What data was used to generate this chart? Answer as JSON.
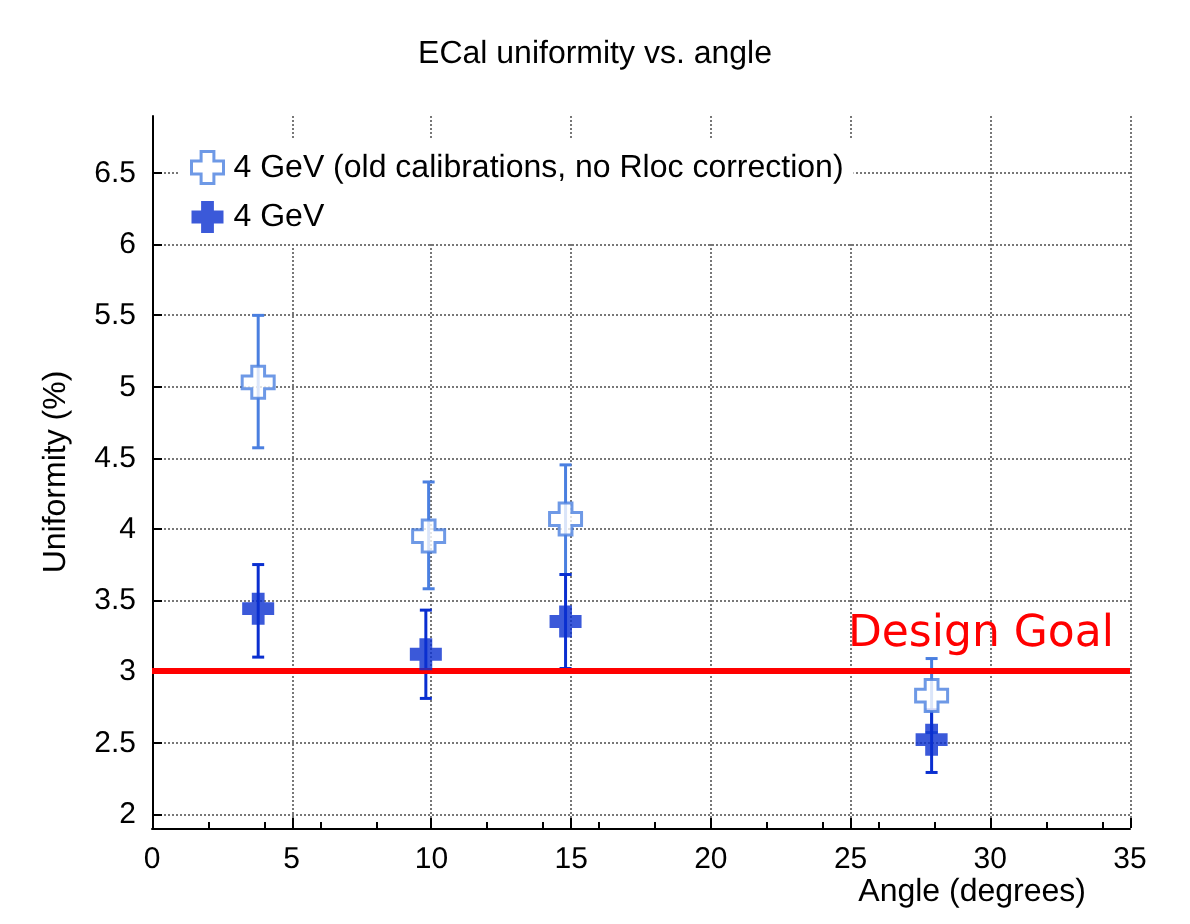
{
  "chart_data": {
    "type": "scatter",
    "title": "ECal uniformity vs. angle",
    "xlabel": "Angle (degrees)",
    "ylabel": "Uniformity (%)",
    "xlim": [
      0,
      35
    ],
    "xticks": [
      0,
      5,
      10,
      15,
      20,
      25,
      30,
      35
    ],
    "ylim": [
      1.9,
      6.9
    ],
    "yticks": [
      2,
      2.5,
      3,
      3.5,
      4,
      4.5,
      5,
      5.5,
      6,
      6.5
    ],
    "grid": true,
    "legend": "top left",
    "marker": "cross",
    "series": [
      {
        "name": "4 GeV (old calibrations, no Rloc correction)",
        "color": "#4a7fe0",
        "x": [
          3.8,
          9.9,
          14.8,
          27.9
        ],
        "values": [
          5.03,
          3.95,
          4.07,
          2.83
        ],
        "errors": [
          [
            4.57,
            5.5
          ],
          [
            3.58,
            4.33
          ],
          [
            3.68,
            4.45
          ],
          [
            2.57,
            3.09
          ]
        ]
      },
      {
        "name": "4 GeV",
        "color": "#0a2fd0",
        "x": [
          3.8,
          9.8,
          14.8,
          27.9
        ],
        "values": [
          3.44,
          3.12,
          3.35,
          2.52
        ],
        "errors": [
          [
            3.1,
            3.75
          ],
          [
            2.81,
            3.43
          ],
          [
            3.02,
            3.68
          ],
          [
            2.29,
            2.73
          ]
        ]
      }
    ],
    "ref_lines": [
      {
        "axis": "y",
        "value": 3,
        "label": "Design Goal",
        "color": "#ff0000"
      }
    ]
  }
}
